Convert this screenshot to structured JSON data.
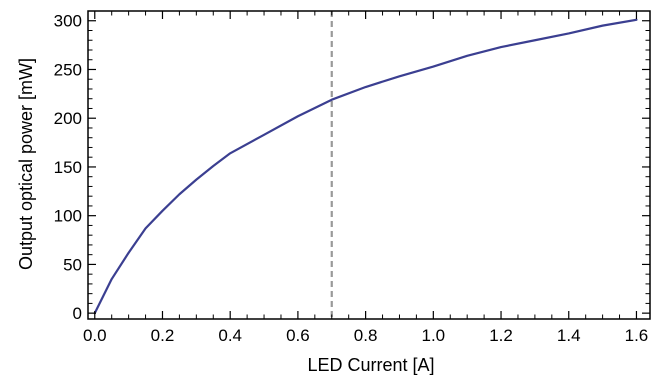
{
  "chart_data": {
    "type": "line",
    "title": "",
    "xlabel": "LED Current [A]",
    "ylabel": "Output optical power [mW]",
    "xlim": [
      -0.02,
      1.64
    ],
    "ylim": [
      -6,
      310
    ],
    "xticks": [
      0.0,
      0.2,
      0.4,
      0.6,
      0.8,
      1.0,
      1.2,
      1.4,
      1.6
    ],
    "xtick_labels": [
      "0.0",
      "0.2",
      "0.4",
      "0.6",
      "0.8",
      "1.0",
      "1.2",
      "1.4",
      "1.6"
    ],
    "yticks": [
      0,
      50,
      100,
      150,
      200,
      250,
      300
    ],
    "ytick_labels": [
      "0",
      "50",
      "100",
      "150",
      "200",
      "250",
      "300"
    ],
    "grid": false,
    "legend": "none",
    "series": [
      {
        "color": "#3b3f91",
        "x": [
          0.0,
          0.05,
          0.1,
          0.15,
          0.2,
          0.25,
          0.3,
          0.35,
          0.4,
          0.5,
          0.6,
          0.7,
          0.8,
          0.9,
          1.0,
          1.1,
          1.2,
          1.3,
          1.4,
          1.5,
          1.6
        ],
        "y": [
          0,
          35,
          62,
          87,
          105,
          122,
          137,
          151,
          164,
          183,
          202,
          219,
          232,
          243,
          253,
          264,
          273,
          280,
          287,
          295,
          301
        ]
      }
    ],
    "reference_line": {
      "orientation": "vertical",
      "x": 0.7,
      "style": "dashed",
      "color": "#999999"
    }
  }
}
